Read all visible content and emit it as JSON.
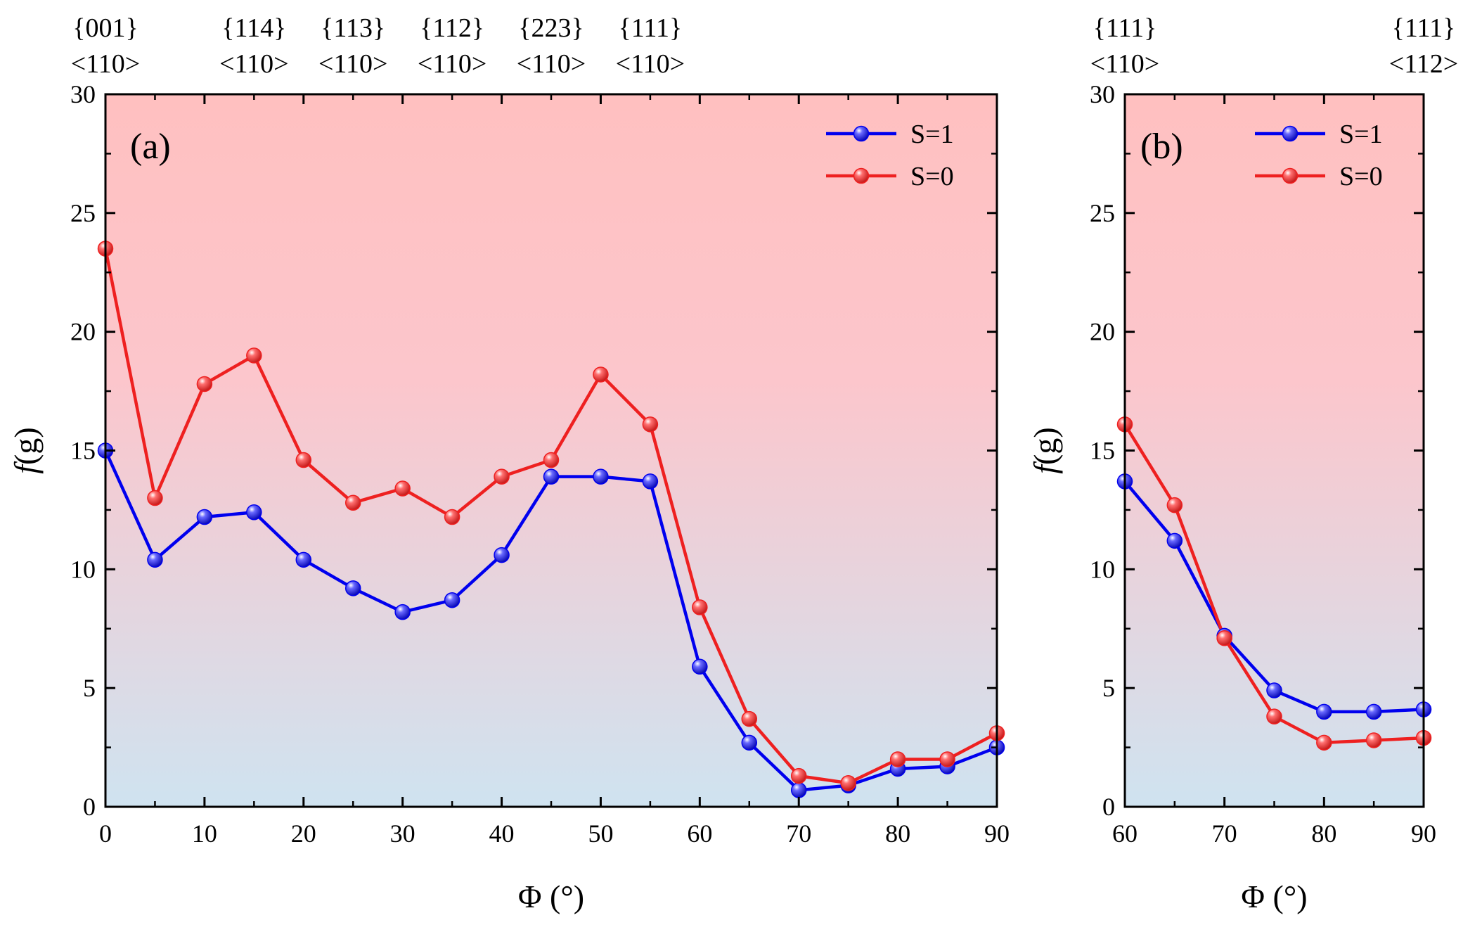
{
  "chart_data": [
    {
      "panel": "(a)",
      "type": "line",
      "xlabel": "Φ (°)",
      "ylabel": "f(g)",
      "xlim": [
        0,
        90
      ],
      "ylim": [
        0,
        30
      ],
      "xticks": [
        0,
        10,
        20,
        30,
        40,
        50,
        60,
        70,
        80,
        90
      ],
      "yticks": [
        0,
        5,
        10,
        15,
        20,
        25,
        30
      ],
      "legend_position": "top-right",
      "background": {
        "top": "#ffc0c0",
        "bottom": "#cfe3f0"
      },
      "x": [
        0,
        5,
        10,
        15,
        20,
        25,
        30,
        35,
        40,
        45,
        50,
        55,
        60,
        65,
        70,
        75,
        80,
        85,
        90
      ],
      "series": [
        {
          "name": "S=1",
          "color": "#0000ee",
          "values": [
            15.0,
            10.4,
            12.2,
            12.4,
            10.4,
            9.2,
            8.2,
            8.7,
            10.6,
            13.9,
            13.9,
            13.7,
            5.9,
            2.7,
            0.7,
            0.9,
            1.6,
            1.7,
            2.5
          ]
        },
        {
          "name": "S=0",
          "color": "#ee2020",
          "values": [
            23.5,
            13.0,
            17.8,
            19.0,
            14.6,
            12.8,
            13.4,
            12.2,
            13.9,
            14.6,
            18.2,
            16.1,
            8.4,
            3.7,
            1.3,
            1.0,
            2.0,
            2.0,
            3.1
          ]
        }
      ],
      "top_annotations": [
        {
          "x": 0,
          "plane": "{001}",
          "direction": "<110>"
        },
        {
          "x": 15,
          "plane": "{114}",
          "direction": "<110>"
        },
        {
          "x": 25,
          "plane": "{113}",
          "direction": "<110>"
        },
        {
          "x": 35,
          "plane": "{112}",
          "direction": "<110>"
        },
        {
          "x": 45,
          "plane": "{223}",
          "direction": "<110>"
        },
        {
          "x": 55,
          "plane": "{111}",
          "direction": "<110>"
        }
      ]
    },
    {
      "panel": "(b)",
      "type": "line",
      "xlabel": "Φ (°)",
      "ylabel": "f(g)",
      "xlim": [
        60,
        90
      ],
      "ylim": [
        0,
        30
      ],
      "xticks": [
        60,
        70,
        80,
        90
      ],
      "yticks": [
        0,
        5,
        10,
        15,
        20,
        25,
        30
      ],
      "legend_position": "top-right",
      "background": {
        "top": "#ffc0c0",
        "bottom": "#cfe3f0"
      },
      "x": [
        60,
        65,
        70,
        75,
        80,
        85,
        90
      ],
      "series": [
        {
          "name": "S=1",
          "color": "#0000ee",
          "values": [
            13.7,
            11.2,
            7.2,
            4.9,
            4.0,
            4.0,
            4.1
          ]
        },
        {
          "name": "S=0",
          "color": "#ee2020",
          "values": [
            16.1,
            12.7,
            7.1,
            3.8,
            2.7,
            2.8,
            2.9
          ]
        }
      ],
      "top_annotations": [
        {
          "x": 60,
          "plane": "{111}",
          "direction": "<110>"
        },
        {
          "x": 90,
          "plane": "{111}",
          "direction": "<112>"
        }
      ]
    }
  ]
}
